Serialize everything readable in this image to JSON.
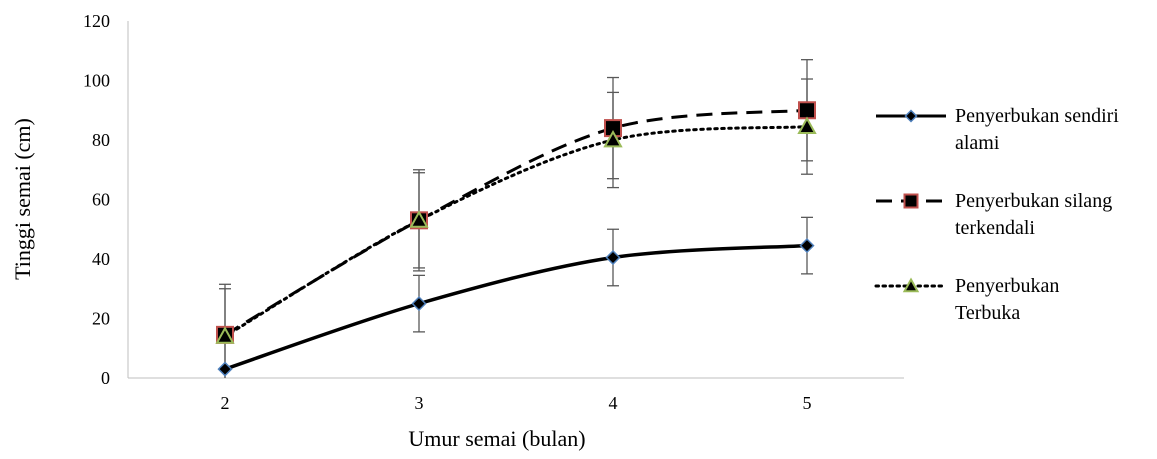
{
  "chart_data": {
    "type": "line",
    "title": "",
    "xlabel": "Umur semai (bulan)",
    "ylabel": "Tinggi semai (cm)",
    "x": [
      2,
      3,
      4,
      5
    ],
    "x_ticks": [
      "2",
      "3",
      "4",
      "5"
    ],
    "ylim": [
      0,
      120
    ],
    "y_ticks": [
      "0",
      "20",
      "40",
      "60",
      "80",
      "100",
      "120"
    ],
    "grid": false,
    "legend_position": "right",
    "series": [
      {
        "name_lines": [
          "Penyerbukan sendiri",
          "alami"
        ],
        "values": [
          3,
          25,
          40.5,
          44.5
        ],
        "error": [
          null,
          9.5,
          9.5,
          9.5
        ],
        "line_style": "solid",
        "marker": "diamond",
        "marker_fill": "#000000",
        "marker_stroke": "#4f81bd"
      },
      {
        "name_lines": [
          "Penyerbukan silang",
          "terkendali"
        ],
        "values": [
          14.5,
          53,
          84,
          90
        ],
        "error": [
          17,
          17,
          17,
          17
        ],
        "line_style": "dashed",
        "marker": "square",
        "marker_fill": "#000000",
        "marker_stroke": "#c0504d"
      },
      {
        "name_lines": [
          "Penyerbukan",
          "Terbuka"
        ],
        "values": [
          14,
          53,
          80,
          84.5
        ],
        "error": [
          16,
          16,
          16,
          16
        ],
        "line_style": "dotted",
        "marker": "triangle",
        "marker_fill": "#000000",
        "marker_stroke": "#9bbb59"
      }
    ]
  }
}
